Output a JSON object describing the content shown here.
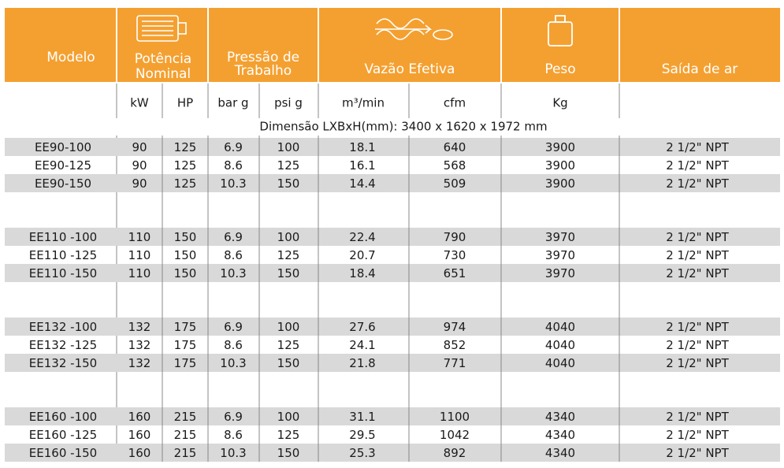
{
  "header": {
    "columns": [
      {
        "lines": [
          "Modelo"
        ]
      },
      {
        "lines": [
          "Potência",
          "Nominal"
        ]
      },
      {
        "lines": [
          "Pressão de",
          "Trabalho"
        ]
      },
      {
        "lines": [
          "Vazão Efetiva"
        ]
      },
      {
        "lines": [
          "Peso"
        ]
      },
      {
        "lines": [
          "Saída de ar"
        ]
      }
    ],
    "units": [
      "kW",
      "HP",
      "bar g",
      "psi g",
      "m³/min",
      "cfm",
      "Kg"
    ]
  },
  "dimension": "Dimensão LXBxH(mm): 3400 x 1620 x 1972 mm",
  "groups": [
    {
      "rows": [
        [
          "EE90-100",
          90,
          125,
          6.9,
          100,
          18.1,
          640,
          3900,
          "2  1/2\" NPT"
        ],
        [
          "EE90-125",
          90,
          125,
          8.6,
          125,
          16.1,
          568,
          3900,
          "2  1/2\" NPT"
        ],
        [
          "EE90-150",
          90,
          125,
          10.3,
          150,
          14.4,
          509,
          3900,
          "2  1/2\" NPT"
        ]
      ]
    },
    {
      "rows": [
        [
          "EE110 -100",
          110,
          150,
          6.9,
          100,
          22.4,
          790,
          3970,
          "2  1/2\" NPT"
        ],
        [
          "EE110 -125",
          110,
          150,
          8.6,
          125,
          20.7,
          730,
          3970,
          "2  1/2\" NPT"
        ],
        [
          "EE110 -150",
          110,
          150,
          10.3,
          150,
          18.4,
          651,
          3970,
          "2  1/2\" NPT"
        ]
      ]
    },
    {
      "rows": [
        [
          "EE132 -100",
          132,
          175,
          6.9,
          100,
          27.6,
          974,
          4040,
          "2  1/2\" NPT"
        ],
        [
          "EE132 -125",
          132,
          175,
          8.6,
          125,
          24.1,
          852,
          4040,
          "2  1/2\" NPT"
        ],
        [
          "EE132 -150",
          132,
          175,
          10.3,
          150,
          21.8,
          771,
          4040,
          "2  1/2\" NPT"
        ]
      ]
    },
    {
      "rows": [
        [
          "EE160  -100",
          160,
          215,
          6.9,
          100,
          31.1,
          1100,
          4340,
          "2  1/2\" NPT"
        ],
        [
          "EE160  -125",
          160,
          215,
          8.6,
          125,
          29.5,
          1042,
          4340,
          "2  1/2\" NPT"
        ],
        [
          "EE160  -150",
          160,
          215,
          10.3,
          150,
          25.3,
          892,
          4340,
          "2  1/2\" NPT"
        ]
      ]
    }
  ]
}
